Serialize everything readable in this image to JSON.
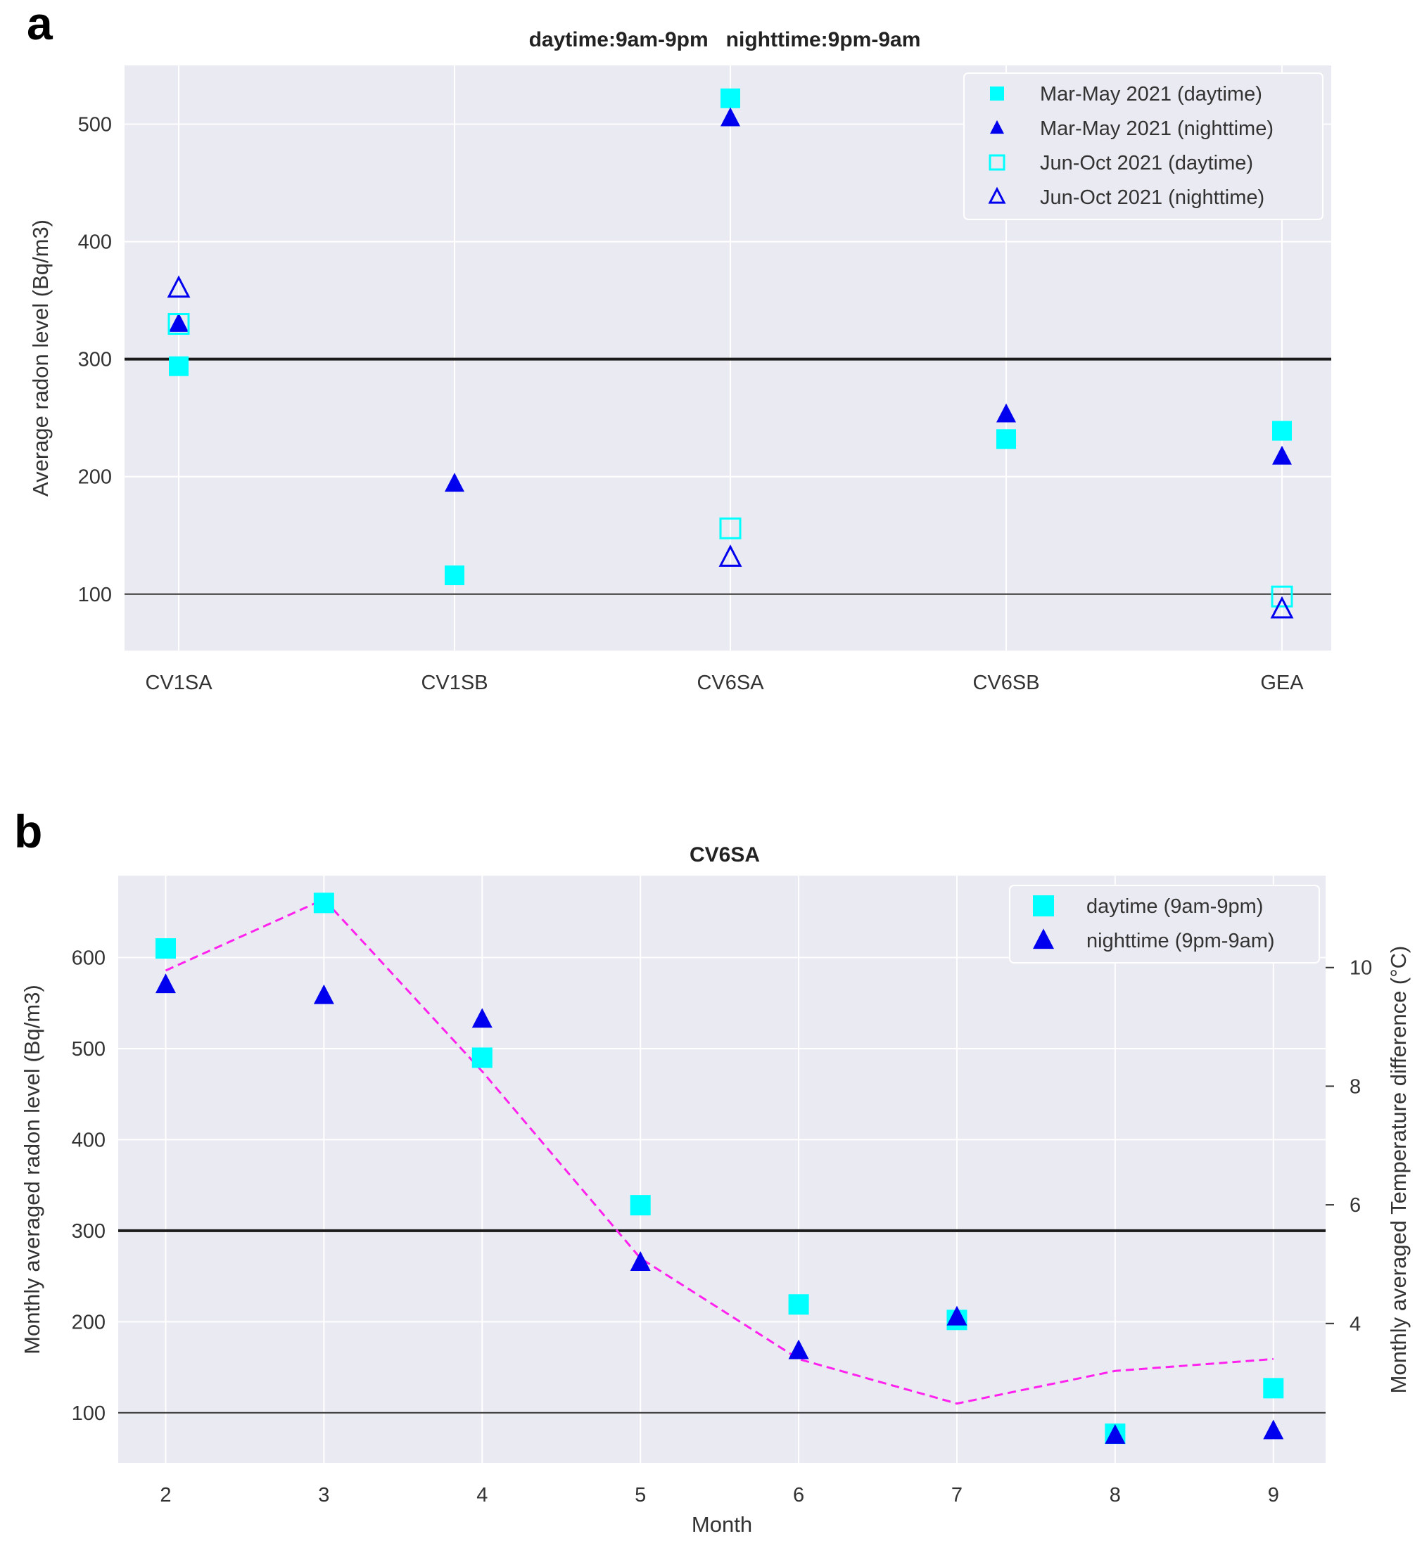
{
  "chart_data": [
    {
      "panel": "a",
      "type": "scatter",
      "title": "daytime:9am-9pm   nighttime:9pm-9am",
      "xlabel": "",
      "ylabel": "Average radon level (Bq/m3)",
      "categories": [
        "CV1SA",
        "CV1SB",
        "CV6SA",
        "CV6SB",
        "GEA"
      ],
      "ylim": [
        52,
        550
      ],
      "yticks": [
        100,
        200,
        300,
        400,
        500
      ],
      "reference_lines": [
        {
          "y": 300,
          "style": "thick"
        },
        {
          "y": 100,
          "style": "thin"
        }
      ],
      "legend_position": "top-right",
      "series": [
        {
          "name": "Mar-May 2021 (daytime)",
          "marker": "square",
          "filled": true,
          "color": "#00FFFF",
          "values": [
            294,
            116,
            522,
            232,
            239
          ]
        },
        {
          "name": "Mar-May 2021 (nighttime)",
          "marker": "triangle",
          "filled": true,
          "color": "#0000EE",
          "values": [
            330,
            194,
            505,
            253,
            217
          ]
        },
        {
          "name": "Jun-Oct 2021 (daytime)",
          "marker": "square",
          "filled": false,
          "color": "#00FFFF",
          "values": [
            330,
            null,
            156,
            null,
            98
          ]
        },
        {
          "name": "Jun-Oct 2021 (nighttime)",
          "marker": "triangle",
          "filled": false,
          "color": "#0000EE",
          "values": [
            360,
            null,
            131,
            null,
            87
          ]
        }
      ]
    },
    {
      "panel": "b",
      "type": "scatter",
      "title": "CV6SA",
      "xlabel": "Month",
      "ylabel": "Monthly averaged radon level (Bq/m3)",
      "ylabel_right": "Monthly averaged Temperature difference (°C)",
      "x": [
        2,
        3,
        4,
        5,
        6,
        7,
        8,
        9
      ],
      "xlim": [
        1.7,
        9.33
      ],
      "ylim": [
        45,
        690
      ],
      "yticks": [
        100,
        200,
        300,
        400,
        500,
        600
      ],
      "ylim_right": [
        1.65,
        11.55
      ],
      "yticks_right": [
        4,
        6,
        8,
        10
      ],
      "reference_lines": [
        {
          "y": 300,
          "style": "thick"
        },
        {
          "y": 100,
          "style": "thin"
        }
      ],
      "legend_position": "top-right",
      "series": [
        {
          "name": "daytime (9am-9pm)",
          "marker": "square",
          "filled": true,
          "color": "#00FFFF",
          "values": [
            610,
            660,
            490,
            328,
            219,
            202,
            77,
            127
          ]
        },
        {
          "name": "nighttime (9pm-9am)",
          "marker": "triangle",
          "filled": true,
          "color": "#0000EE",
          "values": [
            570,
            558,
            532,
            265,
            168,
            205,
            75,
            80
          ]
        }
      ],
      "temperature_series": {
        "name": "Monthly averaged Temperature difference",
        "axis": "right",
        "style": "dashed",
        "color": "#FF22EE",
        "values": [
          9.95,
          11.15,
          8.25,
          5.1,
          3.4,
          2.65,
          3.2,
          3.4
        ]
      }
    }
  ]
}
